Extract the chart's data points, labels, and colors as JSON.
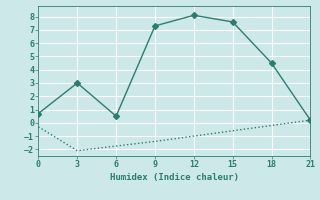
{
  "xlabel": "Humidex (Indice chaleur)",
  "ylabel": "",
  "bg_color": "#cce8e8",
  "grid_color": "#ffffff",
  "line_color": "#2d7d6e",
  "x_main": [
    0,
    3,
    6,
    9,
    12,
    15,
    18,
    21
  ],
  "y_main": [
    0.7,
    3.0,
    0.5,
    7.3,
    8.1,
    7.6,
    4.5,
    0.2
  ],
  "x_lower": [
    0,
    3,
    6,
    9,
    12,
    15,
    18,
    21
  ],
  "y_lower": [
    -0.3,
    -2.1,
    -1.75,
    -1.4,
    -1.0,
    -0.6,
    -0.2,
    0.2
  ],
  "xlim": [
    0,
    21
  ],
  "ylim": [
    -2.5,
    8.8
  ],
  "xticks": [
    0,
    3,
    6,
    9,
    12,
    15,
    18,
    21
  ],
  "yticks": [
    -2,
    -1,
    0,
    1,
    2,
    3,
    4,
    5,
    6,
    7,
    8
  ],
  "marker": "D",
  "markersize": 3,
  "linewidth": 1.0
}
